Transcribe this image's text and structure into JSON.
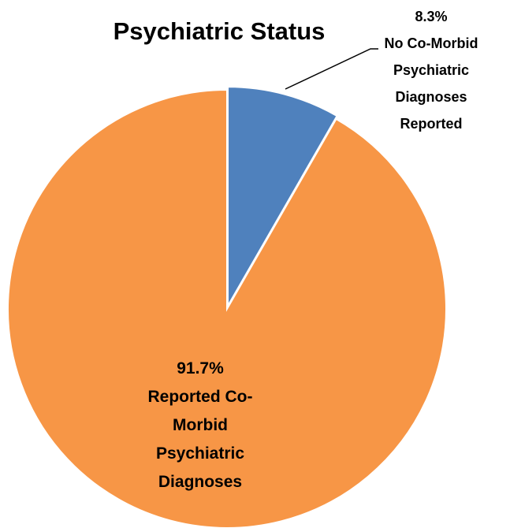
{
  "chart_data": {
    "type": "pie",
    "title": "Psychiatric Status",
    "categories": [
      "No Co-Morbid Psychiatric Diagnoses Reported",
      "Reported Co-Morbid Psychiatric Diagnoses"
    ],
    "values": [
      8.3,
      91.7
    ],
    "value_labels": [
      "8.3%",
      "91.7%"
    ],
    "colors": [
      "#4f81bd",
      "#f79646"
    ]
  }
}
